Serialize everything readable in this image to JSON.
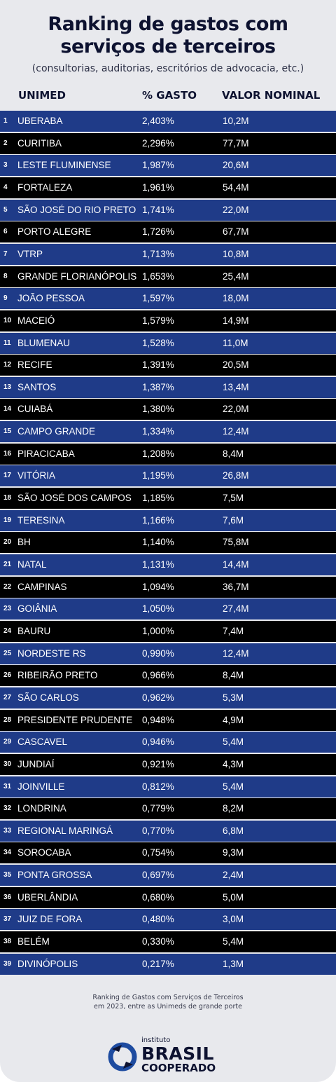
{
  "header": {
    "title_line1": "Ranking de gastos com",
    "title_line2": "serviços de terceiros",
    "subtitle": "(consultorias, auditorias, escritórios de advocacia, etc.)"
  },
  "columns": {
    "unimed": "UNIMED",
    "pct": "% GASTO",
    "valor": "VALOR NOMINAL"
  },
  "colors": {
    "blue_row": "#1f3b88",
    "black_row": "#000000",
    "background": "#e8e9ed",
    "logo_blue": "#1d4ba0"
  },
  "chart_data": {
    "type": "table",
    "columns": [
      "UNIMED",
      "% GASTO",
      "VALOR NOMINAL"
    ],
    "rows": [
      {
        "rank": "1",
        "name": "UBERABA",
        "pct": "2,403%",
        "valor": "10,2M"
      },
      {
        "rank": "2",
        "name": "CURITIBA",
        "pct": "2,296%",
        "valor": "77,7M"
      },
      {
        "rank": "3",
        "name": "LESTE FLUMINENSE",
        "pct": "1,987%",
        "valor": "20,6M"
      },
      {
        "rank": "4",
        "name": "FORTALEZA",
        "pct": "1,961%",
        "valor": "54,4M"
      },
      {
        "rank": "5",
        "name": "SÃO JOSÉ DO RIO PRETO",
        "pct": "1,741%",
        "valor": "22,0M"
      },
      {
        "rank": "6",
        "name": "PORTO ALEGRE",
        "pct": "1,726%",
        "valor": "67,7M"
      },
      {
        "rank": "7",
        "name": "VTRP",
        "pct": "1,713%",
        "valor": "10,8M"
      },
      {
        "rank": "8",
        "name": "GRANDE FLORIANÓPOLIS",
        "pct": "1,653%",
        "valor": "25,4M"
      },
      {
        "rank": "9",
        "name": "JOÃO PESSOA",
        "pct": "1,597%",
        "valor": "18,0M"
      },
      {
        "rank": "10",
        "name": "MACEIÓ",
        "pct": "1,579%",
        "valor": "14,9M"
      },
      {
        "rank": "11",
        "name": "BLUMENAU",
        "pct": "1,528%",
        "valor": "11,0M"
      },
      {
        "rank": "12",
        "name": "RECIFE",
        "pct": "1,391%",
        "valor": "20,5M"
      },
      {
        "rank": "13",
        "name": "SANTOS",
        "pct": "1,387%",
        "valor": "13,4M"
      },
      {
        "rank": "14",
        "name": "CUIABÁ",
        "pct": "1,380%",
        "valor": "22,0M"
      },
      {
        "rank": "15",
        "name": "CAMPO GRANDE",
        "pct": "1,334%",
        "valor": "12,4M"
      },
      {
        "rank": "16",
        "name": "PIRACICABA",
        "pct": "1,208%",
        "valor": "8,4M"
      },
      {
        "rank": "17",
        "name": "VITÓRIA",
        "pct": "1,195%",
        "valor": "26,8M"
      },
      {
        "rank": "18",
        "name": "SÃO JOSÉ DOS CAMPOS",
        "pct": "1,185%",
        "valor": "7,5M"
      },
      {
        "rank": "19",
        "name": "TERESINA",
        "pct": "1,166%",
        "valor": "7,6M"
      },
      {
        "rank": "20",
        "name": "BH",
        "pct": "1,140%",
        "valor": "75,8M"
      },
      {
        "rank": "21",
        "name": "NATAL",
        "pct": "1,131%",
        "valor": "14,4M"
      },
      {
        "rank": "22",
        "name": "CAMPINAS",
        "pct": "1,094%",
        "valor": "36,7M"
      },
      {
        "rank": "23",
        "name": "GOIÂNIA",
        "pct": "1,050%",
        "valor": "27,4M"
      },
      {
        "rank": "24",
        "name": "BAURU",
        "pct": "1,000%",
        "valor": "7,4M"
      },
      {
        "rank": "25",
        "name": "NORDESTE RS",
        "pct": "0,990%",
        "valor": "12,4M"
      },
      {
        "rank": "26",
        "name": "RIBEIRÃO PRETO",
        "pct": "0,966%",
        "valor": "8,4M"
      },
      {
        "rank": "27",
        "name": "SÃO CARLOS",
        "pct": "0,962%",
        "valor": "5,3M"
      },
      {
        "rank": "28",
        "name": "PRESIDENTE PRUDENTE",
        "pct": "0,948%",
        "valor": "4,9M"
      },
      {
        "rank": "29",
        "name": "CASCAVEL",
        "pct": "0,946%",
        "valor": "5,4M"
      },
      {
        "rank": "30",
        "name": "JUNDIAÍ",
        "pct": "0,921%",
        "valor": "4,3M"
      },
      {
        "rank": "31",
        "name": "JOINVILLE",
        "pct": "0,812%",
        "valor": "5,4M"
      },
      {
        "rank": "32",
        "name": "LONDRINA",
        "pct": "0,779%",
        "valor": "8,2M"
      },
      {
        "rank": "33",
        "name": "REGIONAL MARINGÁ",
        "pct": "0,770%",
        "valor": "6,8M"
      },
      {
        "rank": "34",
        "name": "SOROCABA",
        "pct": "0,754%",
        "valor": "9,3M"
      },
      {
        "rank": "35",
        "name": "PONTA GROSSA",
        "pct": "0,697%",
        "valor": "2,4M"
      },
      {
        "rank": "36",
        "name": "UBERLÂNDIA",
        "pct": "0,680%",
        "valor": "5,0M"
      },
      {
        "rank": "37",
        "name": "JUIZ DE FORA",
        "pct": "0,480%",
        "valor": "3,0M"
      },
      {
        "rank": "38",
        "name": "BELÉM",
        "pct": "0,330%",
        "valor": "5,4M"
      },
      {
        "rank": "39",
        "name": "DIVINÓPOLIS",
        "pct": "0,217%",
        "valor": "1,3M"
      }
    ]
  },
  "footer": {
    "note_line1": "Ranking de Gastos com Serviços de Terceiros",
    "note_line2": "em 2023, entre as Unimeds de grande porte",
    "logo_small": "instituto",
    "logo_big": "BRASIL",
    "logo_mid": "COOPERADO",
    "logo_icon": "brasil-cooperado-logo-icon"
  }
}
